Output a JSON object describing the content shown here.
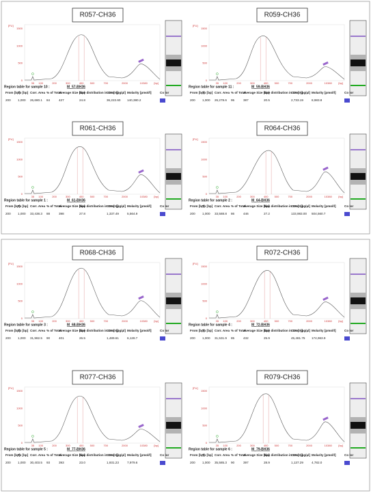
{
  "table_headers": [
    "From [bp]",
    "To [bp]",
    "Corr. Area",
    "% of Total",
    "Average Size [bp]",
    "Size distribution in CV [%]",
    "Conc. [pg/µl]",
    "Molarity [pmol/l]",
    "Co lor"
  ],
  "y_axis_label": "[FU]",
  "y_ticks": [
    "0",
    "500",
    "1000",
    "1500"
  ],
  "x_axis_label": "[bp]",
  "x_ticks": [
    "35",
    "100",
    "200",
    "300",
    "400",
    "500",
    "700",
    "2000",
    "10380"
  ],
  "panels": [
    {
      "title": "R057-CH36",
      "region_label": "Region table for sample 10 :",
      "sample": "M_57-BH36",
      "row": [
        "200",
        "1,000",
        "26,680.1",
        "84",
        "427",
        "24.8",
        "36,222.60",
        "140,380.2"
      ]
    },
    {
      "title": "R059-CH36",
      "region_label": "Region table for sample 11 :",
      "sample": "M_59-BH36",
      "row": [
        "200",
        "1,000",
        "26,278.6",
        "95",
        "387",
        "20.5",
        "2,733.19",
        "8,983.8"
      ]
    },
    {
      "title": "R061-CH36",
      "region_label": "Region table for sample 1 :",
      "sample": "M_61-BH36",
      "row": [
        "200",
        "1,000",
        "33,438.3",
        "88",
        "398",
        "27.8",
        "1,337.49",
        "5,564.9"
      ]
    },
    {
      "title": "R064-CH36",
      "region_label": "Region table for sample 2 :",
      "sample": "M_64-BH36",
      "row": [
        "200",
        "1,000",
        "33,588.8",
        "86",
        "446",
        "27.2",
        "133,983.00",
        "504,560.7"
      ]
    },
    {
      "title": "R068-CH36",
      "region_label": "Region table for sample 3 :",
      "sample": "M_68-BH36",
      "row": [
        "200",
        "1,000",
        "31,982.5",
        "90",
        "401",
        "26.5",
        "1,489.61",
        "6,128.7"
      ]
    },
    {
      "title": "R072-CH36",
      "region_label": "Region table for sample 4 :",
      "sample": "M_72-BH36",
      "row": [
        "200",
        "1,000",
        "31,531.9",
        "85",
        "432",
        "25.9",
        "45,481.75",
        "174,963.9"
      ]
    },
    {
      "title": "R077-CH36",
      "region_label": "Region table for sample 5 :",
      "sample": "M_77-BH36",
      "row": [
        "200",
        "1,000",
        "30,403.5",
        "93",
        "393",
        "23.0",
        "1,931.23",
        "7,979.6"
      ]
    },
    {
      "title": "R079-CH36",
      "region_label": "Region table for sample 6 :",
      "sample": "M_79-BH36",
      "row": [
        "200",
        "1,000",
        "35,585.3",
        "90",
        "397",
        "28.9",
        "1,137.29",
        "4,782.0"
      ]
    }
  ]
}
